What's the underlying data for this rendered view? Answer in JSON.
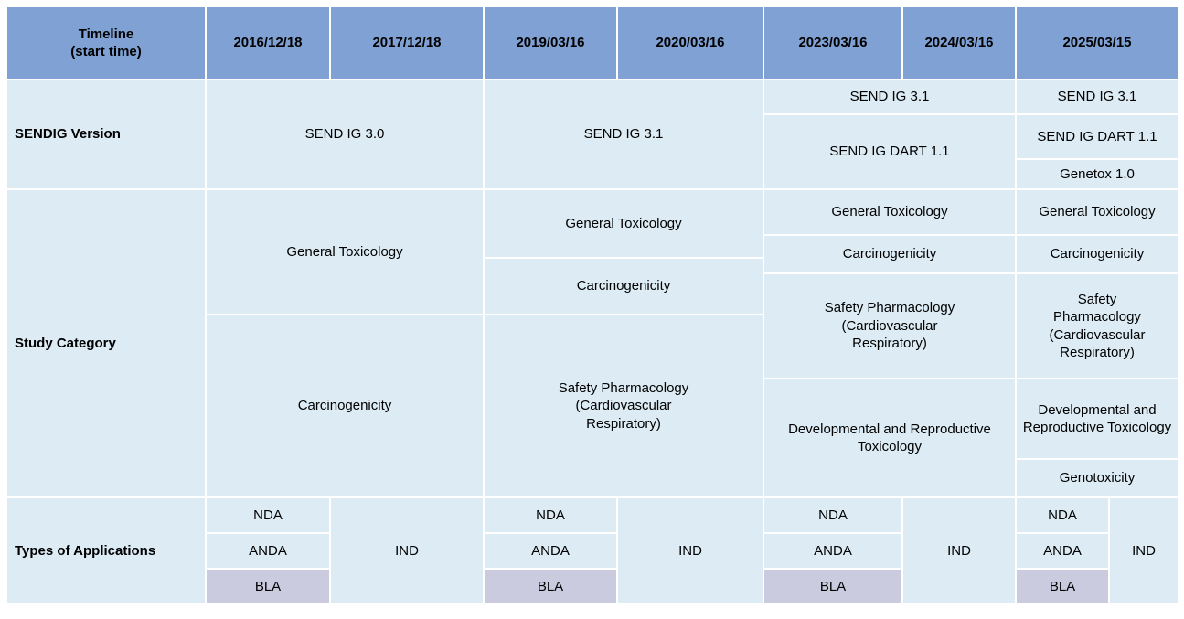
{
  "palette": {
    "header_bg": "#7fa1d4",
    "cell_bg": "#dcebf4",
    "bla_bg": "#cbcbdf",
    "grid": "#ffffff",
    "text": "#000000"
  },
  "header": {
    "timeline_label": "Timeline\n(start time)",
    "dates": [
      "2016/12/18",
      "2017/12/18",
      "2019/03/16",
      "2020/03/16",
      "2023/03/16",
      "2024/03/16",
      "2025/03/15"
    ]
  },
  "sendig": {
    "label": "SENDIG Version",
    "v_2016_2017": "SEND IG 3.0",
    "v_2019_2020": "SEND IG 3.1",
    "v_2023_2024_top": "SEND IG 3.1",
    "v_2023_2024_bottom": "SEND IG DART 1.1",
    "v_2025_top": "SEND IG 3.1",
    "v_2025_mid": "SEND IG DART 1.1",
    "v_2025_bottom": "Genetox 1.0"
  },
  "study": {
    "label": "Study Category",
    "g_2016_2017": [
      "General Toxicology",
      "Carcinogenicity"
    ],
    "g_2019_2020": [
      "General Toxicology",
      "Carcinogenicity",
      "Safety Pharmacology\n(Cardiovascular\nRespiratory)"
    ],
    "g_2023_2024": [
      "General Toxicology",
      "Carcinogenicity",
      "Safety Pharmacology\n(Cardiovascular\nRespiratory)",
      "Developmental and Reproductive Toxicology"
    ],
    "g_2025": [
      "General Toxicology",
      "Carcinogenicity",
      "Safety\nPharmacology\n(Cardiovascular\nRespiratory)",
      "Developmental and Reproductive Toxicology",
      "Genotoxicity"
    ]
  },
  "applications": {
    "label": "Types of Applications",
    "stacked": [
      "NDA",
      "ANDA",
      "BLA"
    ],
    "merged": "IND"
  }
}
